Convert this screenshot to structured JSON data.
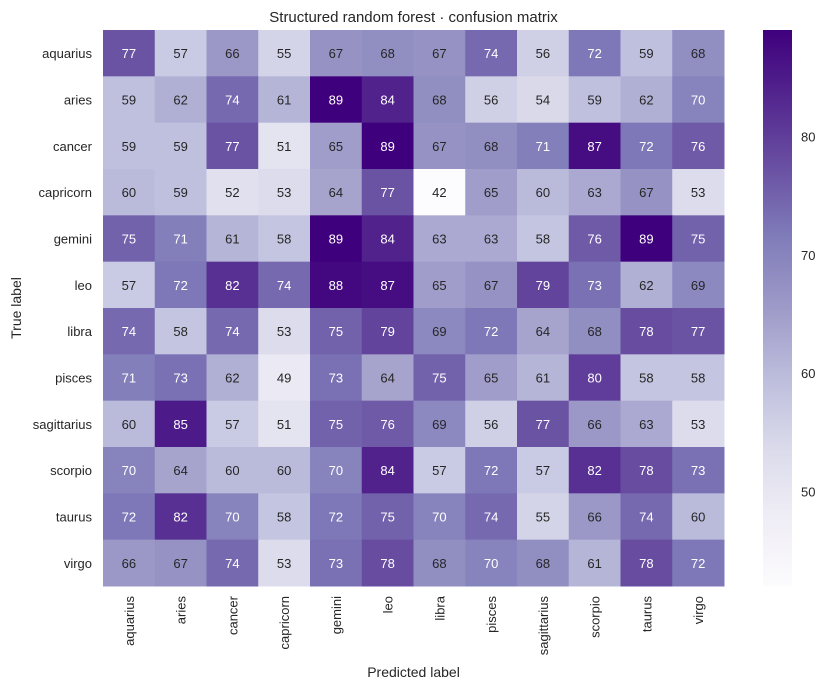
{
  "chart_data": {
    "type": "heatmap",
    "title": "Structured random forest · confusion matrix",
    "xlabel": "Predicted label",
    "ylabel": "True label",
    "labels": [
      "aquarius",
      "aries",
      "cancer",
      "capricorn",
      "gemini",
      "leo",
      "libra",
      "pisces",
      "sagittarius",
      "scorpio",
      "taurus",
      "virgo"
    ],
    "matrix": [
      [
        77,
        57,
        66,
        55,
        67,
        68,
        67,
        74,
        56,
        72,
        59,
        68
      ],
      [
        59,
        62,
        74,
        61,
        89,
        84,
        68,
        56,
        54,
        59,
        62,
        70
      ],
      [
        59,
        59,
        77,
        51,
        65,
        89,
        67,
        68,
        71,
        87,
        72,
        76
      ],
      [
        60,
        59,
        52,
        53,
        64,
        77,
        42,
        65,
        60,
        63,
        67,
        53
      ],
      [
        75,
        71,
        61,
        58,
        89,
        84,
        63,
        63,
        58,
        76,
        89,
        75
      ],
      [
        57,
        72,
        82,
        74,
        88,
        87,
        65,
        67,
        79,
        73,
        62,
        69
      ],
      [
        74,
        58,
        74,
        53,
        75,
        79,
        69,
        72,
        64,
        68,
        78,
        77
      ],
      [
        71,
        73,
        62,
        49,
        73,
        64,
        75,
        65,
        61,
        80,
        58,
        58
      ],
      [
        60,
        85,
        57,
        51,
        75,
        76,
        69,
        56,
        77,
        66,
        63,
        53
      ],
      [
        70,
        64,
        60,
        60,
        70,
        84,
        57,
        72,
        57,
        82,
        78,
        73
      ],
      [
        72,
        82,
        70,
        58,
        72,
        75,
        70,
        74,
        55,
        66,
        74,
        60
      ],
      [
        66,
        67,
        74,
        53,
        73,
        78,
        68,
        70,
        68,
        61,
        78,
        72
      ]
    ],
    "colorbar": {
      "min": 42,
      "max": 89,
      "ticks": [
        50,
        60,
        70,
        80
      ],
      "colormap": "Purples",
      "colors": [
        "#fcfbfd",
        "#efedf5",
        "#dadaeb",
        "#bcbddc",
        "#9e9ac8",
        "#807dba",
        "#6a51a3",
        "#54278f",
        "#3f007d"
      ]
    },
    "grid": false
  }
}
